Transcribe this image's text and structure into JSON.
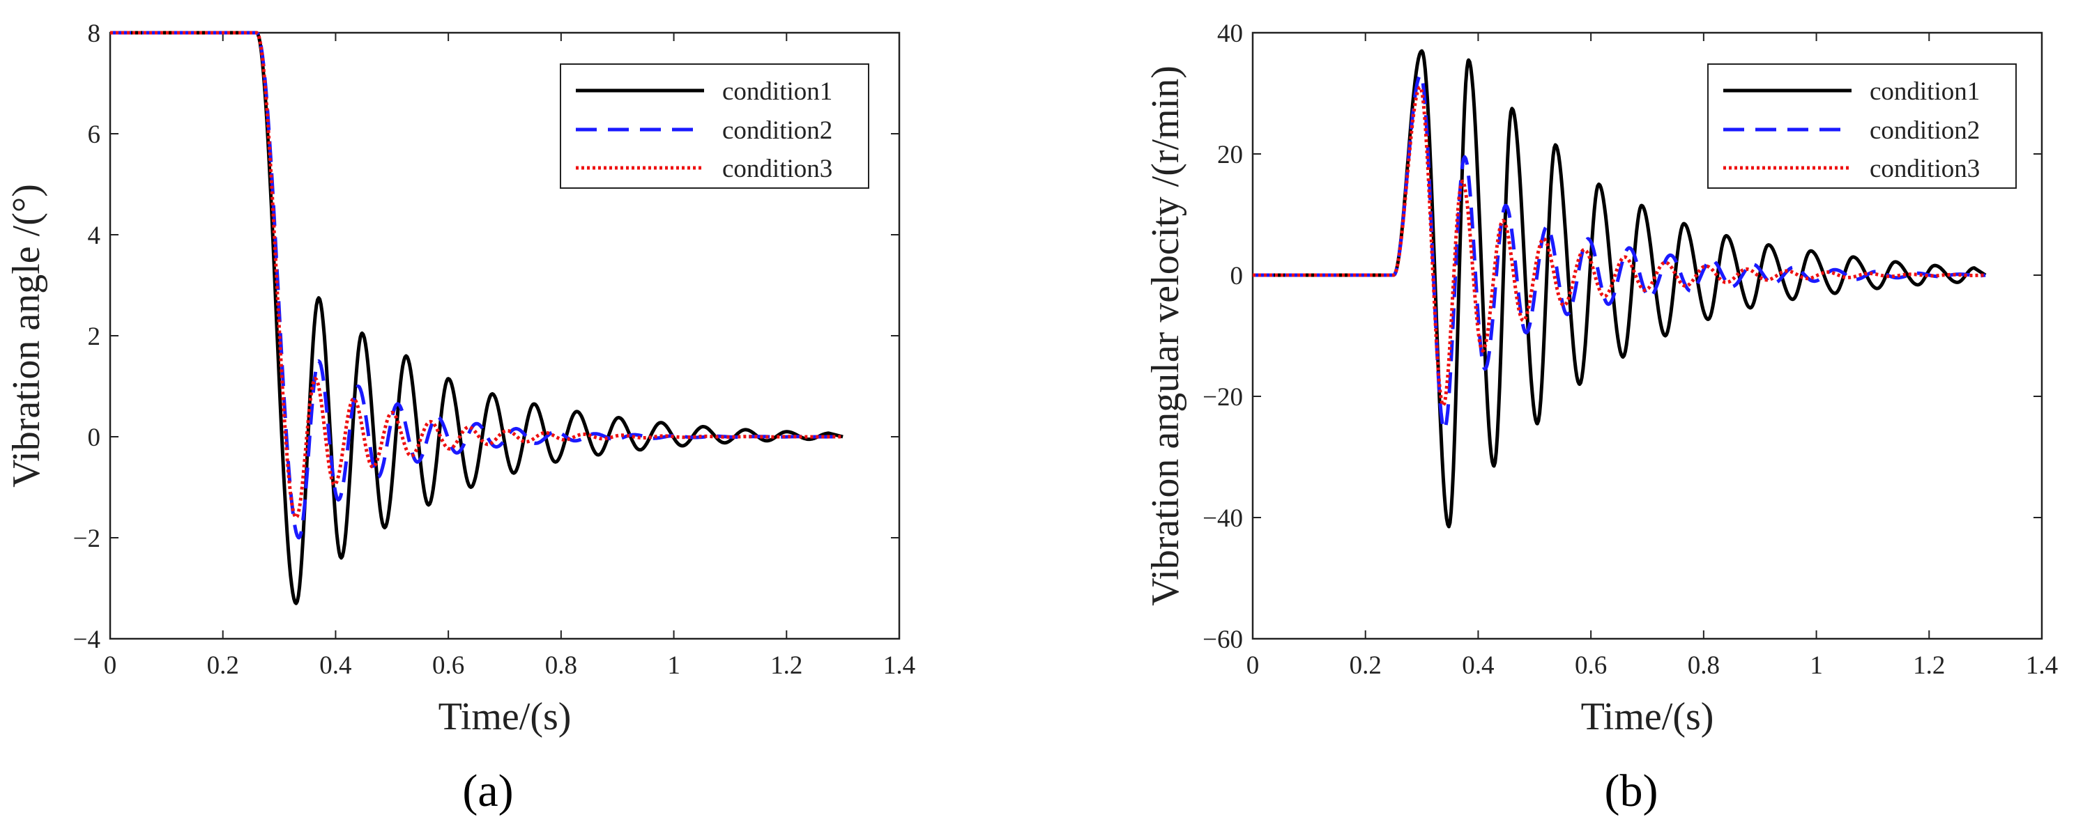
{
  "chart_data": [
    {
      "type": "line",
      "panel_label": "(a)",
      "xlabel": "Time/(s)",
      "ylabel": "Vibration angle /(°)",
      "xlim": [
        0,
        1.4
      ],
      "ylim": [
        -4,
        8
      ],
      "xticks": [
        0,
        0.2,
        0.4,
        0.6,
        0.8,
        1,
        1.2,
        1.4
      ],
      "yticks": [
        -4,
        -2,
        0,
        2,
        4,
        6,
        8
      ],
      "xtick_labels": [
        "0",
        "0.2",
        "0.4",
        "0.6",
        "0.8",
        "1",
        "1.2",
        "1.4"
      ],
      "ytick_labels": [
        "−4",
        "−2",
        "0",
        "2",
        "4",
        "6",
        "8"
      ],
      "legend_position": "top-right",
      "series": [
        {
          "name": "condition1",
          "color": "#000000",
          "style": "solid",
          "t0": 0.26,
          "tend": 1.3,
          "pre": 8,
          "drop_end": 0.33,
          "troughs": [
            [
              0.33,
              -3.3
            ],
            [
              0.41,
              -2.4
            ],
            [
              0.487,
              -1.8
            ],
            [
              0.565,
              -1.35
            ],
            [
              0.64,
              -1.0
            ],
            [
              0.716,
              -0.72
            ],
            [
              0.79,
              -0.5
            ],
            [
              0.866,
              -0.36
            ],
            [
              0.94,
              -0.26
            ],
            [
              1.015,
              -0.18
            ],
            [
              1.09,
              -0.12
            ],
            [
              1.165,
              -0.08
            ],
            [
              1.24,
              -0.05
            ]
          ],
          "peaks": [
            [
              0.37,
              2.75
            ],
            [
              0.447,
              2.05
            ],
            [
              0.525,
              1.6
            ],
            [
              0.6,
              1.15
            ],
            [
              0.678,
              0.85
            ],
            [
              0.752,
              0.65
            ],
            [
              0.828,
              0.5
            ],
            [
              0.902,
              0.38
            ],
            [
              0.977,
              0.28
            ],
            [
              1.052,
              0.2
            ],
            [
              1.127,
              0.14
            ],
            [
              1.2,
              0.1
            ],
            [
              1.275,
              0.07
            ]
          ]
        },
        {
          "name": "condition2",
          "color": "#1a1aff",
          "style": "dashed",
          "t0": 0.26,
          "tend": 1.3,
          "pre": 8,
          "drop_end": 0.335,
          "troughs": [
            [
              0.335,
              -2.0
            ],
            [
              0.405,
              -1.25
            ],
            [
              0.475,
              -0.8
            ],
            [
              0.545,
              -0.5
            ],
            [
              0.615,
              -0.32
            ],
            [
              0.685,
              -0.2
            ],
            [
              0.755,
              -0.13
            ],
            [
              0.825,
              -0.08
            ],
            [
              0.895,
              -0.05
            ],
            [
              0.965,
              -0.03
            ]
          ],
          "peaks": [
            [
              0.37,
              1.5
            ],
            [
              0.44,
              1.0
            ],
            [
              0.51,
              0.65
            ],
            [
              0.58,
              0.4
            ],
            [
              0.65,
              0.26
            ],
            [
              0.72,
              0.16
            ],
            [
              0.79,
              0.1
            ],
            [
              0.86,
              0.06
            ],
            [
              0.93,
              0.04
            ],
            [
              1.0,
              0.02
            ]
          ]
        },
        {
          "name": "condition3",
          "color": "#ee1111",
          "style": "dotted",
          "t0": 0.26,
          "tend": 1.3,
          "pre": 8,
          "drop_end": 0.33,
          "troughs": [
            [
              0.33,
              -1.6
            ],
            [
              0.398,
              -0.95
            ],
            [
              0.466,
              -0.6
            ],
            [
              0.534,
              -0.38
            ],
            [
              0.602,
              -0.24
            ],
            [
              0.67,
              -0.15
            ],
            [
              0.738,
              -0.1
            ],
            [
              0.806,
              -0.06
            ],
            [
              0.874,
              -0.04
            ]
          ],
          "peaks": [
            [
              0.364,
              1.15
            ],
            [
              0.432,
              0.75
            ],
            [
              0.5,
              0.48
            ],
            [
              0.568,
              0.3
            ],
            [
              0.636,
              0.19
            ],
            [
              0.704,
              0.12
            ],
            [
              0.772,
              0.08
            ],
            [
              0.84,
              0.05
            ],
            [
              0.908,
              0.03
            ]
          ]
        }
      ]
    },
    {
      "type": "line",
      "panel_label": "(b)",
      "xlabel": "Time/(s)",
      "ylabel": "Vibration angular velocity /(r/min)",
      "xlim": [
        0,
        1.4
      ],
      "ylim": [
        -60,
        40
      ],
      "xticks": [
        0,
        0.2,
        0.4,
        0.6,
        0.8,
        1,
        1.2,
        1.4
      ],
      "yticks": [
        -60,
        -40,
        -20,
        0,
        20,
        40
      ],
      "xtick_labels": [
        "0",
        "0.2",
        "0.4",
        "0.6",
        "0.8",
        "1",
        "1.2",
        "1.4"
      ],
      "ytick_labels": [
        "−60",
        "−40",
        "−20",
        "0",
        "20",
        "40"
      ],
      "legend_position": "top-right",
      "series": [
        {
          "name": "condition1",
          "color": "#000000",
          "style": "solid",
          "t0": 0.25,
          "tend": 1.3,
          "pre": 0,
          "peaks": [
            [
              0.3,
              37
            ],
            [
              0.383,
              35.5
            ],
            [
              0.46,
              27.5
            ],
            [
              0.537,
              21.5
            ],
            [
              0.614,
              15
            ],
            [
              0.69,
              11.5
            ],
            [
              0.765,
              8.5
            ],
            [
              0.84,
              6.5
            ],
            [
              0.915,
              5
            ],
            [
              0.99,
              4
            ],
            [
              1.065,
              3
            ],
            [
              1.14,
              2.2
            ],
            [
              1.21,
              1.6
            ],
            [
              1.28,
              1.2
            ]
          ],
          "troughs": [
            [
              0.348,
              -41.5
            ],
            [
              0.428,
              -31.5
            ],
            [
              0.505,
              -24.5
            ],
            [
              0.58,
              -18
            ],
            [
              0.657,
              -13.5
            ],
            [
              0.732,
              -10
            ],
            [
              0.808,
              -7.3
            ],
            [
              0.883,
              -5.4
            ],
            [
              0.958,
              -4
            ],
            [
              1.033,
              -3
            ],
            [
              1.108,
              -2.2
            ],
            [
              1.18,
              -1.6
            ],
            [
              1.25,
              -1.2
            ]
          ]
        },
        {
          "name": "condition2",
          "color": "#1a1aff",
          "style": "dashed",
          "t0": 0.25,
          "tend": 1.3,
          "pre": 0,
          "peaks": [
            [
              0.298,
              33
            ],
            [
              0.376,
              19.5
            ],
            [
              0.449,
              11.5
            ],
            [
              0.522,
              8
            ],
            [
              0.595,
              6
            ],
            [
              0.668,
              4.5
            ],
            [
              0.741,
              3.3
            ],
            [
              0.814,
              2.5
            ],
            [
              0.887,
              1.8
            ],
            [
              0.96,
              1.3
            ],
            [
              1.033,
              0.9
            ],
            [
              1.106,
              0.6
            ]
          ],
          "troughs": [
            [
              0.34,
              -25.5
            ],
            [
              0.412,
              -15.5
            ],
            [
              0.485,
              -9.5
            ],
            [
              0.558,
              -6.5
            ],
            [
              0.631,
              -4.8
            ],
            [
              0.704,
              -3.6
            ],
            [
              0.777,
              -2.6
            ],
            [
              0.85,
              -1.9
            ],
            [
              0.923,
              -1.4
            ],
            [
              0.996,
              -1.0
            ],
            [
              1.07,
              -0.7
            ]
          ]
        },
        {
          "name": "condition3",
          "color": "#ee1111",
          "style": "dotted",
          "t0": 0.25,
          "tend": 1.3,
          "pre": 0,
          "peaks": [
            [
              0.297,
              31
            ],
            [
              0.372,
              15.5
            ],
            [
              0.444,
              9
            ],
            [
              0.516,
              6
            ],
            [
              0.588,
              4.2
            ],
            [
              0.66,
              3
            ],
            [
              0.732,
              2.1
            ],
            [
              0.804,
              1.5
            ],
            [
              0.876,
              1.0
            ],
            [
              0.948,
              0.7
            ],
            [
              1.02,
              0.5
            ]
          ],
          "troughs": [
            [
              0.338,
              -21.5
            ],
            [
              0.408,
              -12.5
            ],
            [
              0.48,
              -7.5
            ],
            [
              0.552,
              -5
            ],
            [
              0.624,
              -3.5
            ],
            [
              0.696,
              -2.5
            ],
            [
              0.768,
              -1.8
            ],
            [
              0.84,
              -1.2
            ],
            [
              0.912,
              -0.8
            ],
            [
              0.984,
              -0.55
            ],
            [
              1.056,
              -0.4
            ]
          ]
        }
      ]
    }
  ]
}
